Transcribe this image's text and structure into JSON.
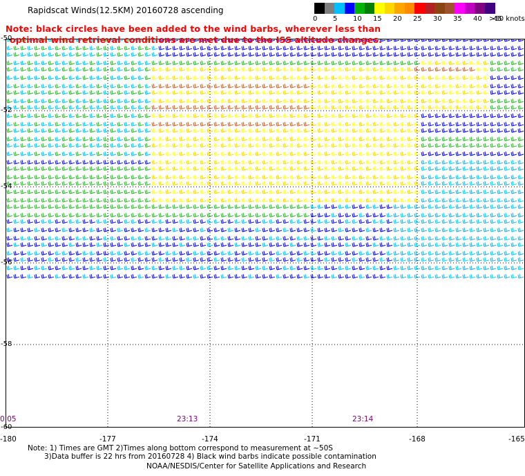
{
  "title": "Rapidscat Winds(12.5KM) 20160728 ascending",
  "note_lines": [
    "Note: black circles have been added to the wind barbs, wherever less than",
    "optimal wind retrieval conditions are met due to the ISS altitude changes."
  ],
  "colorbar": {
    "unit_label": ">50 knots",
    "ticks": [
      "0",
      "5",
      "10",
      "15",
      "20",
      "25",
      "30",
      "35",
      "40",
      "45"
    ],
    "colors": [
      "#000000",
      "#7f7f7f",
      "#00bfff",
      "#0000ff",
      "#00b400",
      "#008000",
      "#ffff00",
      "#ffd700",
      "#ffa500",
      "#ff8c00",
      "#ff0000",
      "#b22222",
      "#8b4513",
      "#a0522d",
      "#ff00ff",
      "#c000c0",
      "#800080",
      "#400080"
    ]
  },
  "lat_labels": [
    "-50",
    "-52",
    "-54",
    "-56",
    "-58",
    "-60"
  ],
  "lon_labels": [
    "-180",
    "-177",
    "-174",
    "-171",
    "-168",
    "-165"
  ],
  "time_labels": [
    "0:05",
    "23:13",
    "23:14"
  ],
  "footer_notes": [
    "Note: 1) Times are GMT 2)Times along bottom correspond to measurement at ~50S",
    "3)Data buffer is 22 hrs from 20160728 4) Black wind barbs indicate possible contamination"
  ],
  "credit": "NOAA/NESDIS/Center for Satellite Applications and Research"
}
